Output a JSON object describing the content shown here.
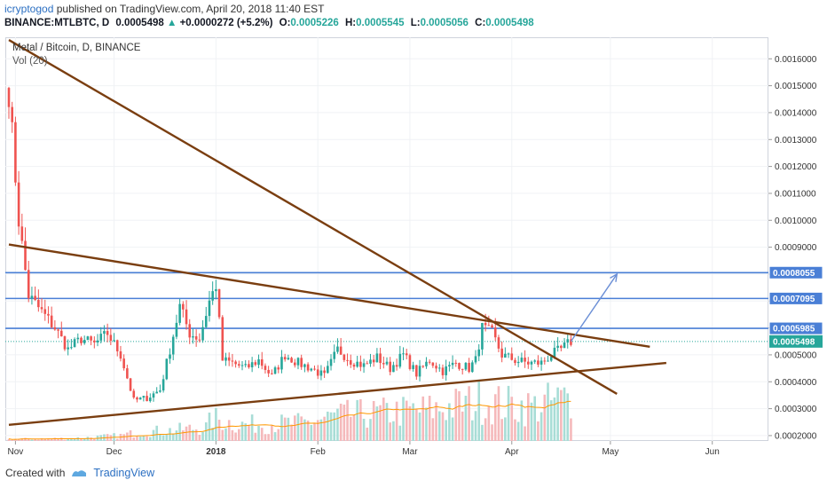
{
  "header": {
    "author": "icryptogod",
    "published": "published on TradingView.com, April 20, 2018 11:40 EST"
  },
  "ticker": {
    "symbol": "BINANCE:MTLBTC, D",
    "last": "0.0005498",
    "change": "+0.0000272 (+5.2%)",
    "open_label": "O:",
    "open": "0.0005226",
    "high_label": "H:",
    "high": "0.0005545",
    "low_label": "L:",
    "low": "0.0005056",
    "close_label": "C:",
    "close": "0.0005498",
    "up_arrow": "▲"
  },
  "legend": {
    "title": "Metal / Bitcoin, D, BINANCE",
    "volume": "Vol (20)"
  },
  "footer": {
    "created_with": "Created with",
    "brand": "TradingView"
  },
  "colors": {
    "up": "#26a69a",
    "down": "#ef5350",
    "trendline": "#7a3e10",
    "level": "#4a7fd6",
    "vol_up": "#a8ddd6",
    "vol_down": "#f5b9bb",
    "vol_ma": "#ff9800",
    "last_price": "#26a69a"
  },
  "chart_data": {
    "type": "candlestick",
    "ylim": [
      0.00018,
      0.00168
    ],
    "yticks": [
      "0.0002000",
      "0.0003000",
      "0.0004000",
      "0.0005000",
      "0.0006000",
      "0.0007000",
      "0.0008000",
      "0.0009000",
      "0.0010000",
      "0.0011000",
      "0.0012000",
      "0.0013000",
      "0.0014000",
      "0.0015000",
      "0.0016000"
    ],
    "xticks": [
      {
        "label": "Nov",
        "day": 2
      },
      {
        "label": "Dec",
        "day": 32
      },
      {
        "label": "2018",
        "day": 63
      },
      {
        "label": "Feb",
        "day": 94
      },
      {
        "label": "Mar",
        "day": 122
      },
      {
        "label": "Apr",
        "day": 153
      },
      {
        "label": "May",
        "day": 183
      },
      {
        "label": "Jun",
        "day": 214
      }
    ],
    "xlim_days": [
      0,
      230
    ],
    "anchors": [
      [
        0,
        0.00148
      ],
      [
        3,
        0.001
      ],
      [
        6,
        0.00072
      ],
      [
        10,
        0.00066
      ],
      [
        14,
        0.0006
      ],
      [
        18,
        0.00052
      ],
      [
        22,
        0.00056
      ],
      [
        26,
        0.00054
      ],
      [
        30,
        0.00058
      ],
      [
        34,
        0.0005
      ],
      [
        38,
        0.00033
      ],
      [
        42,
        0.00034
      ],
      [
        46,
        0.00037
      ],
      [
        49,
        0.00052
      ],
      [
        52,
        0.00068
      ],
      [
        55,
        0.00058
      ],
      [
        58,
        0.00056
      ],
      [
        61,
        0.0007
      ],
      [
        63,
        0.00076
      ],
      [
        65,
        0.00048
      ],
      [
        68,
        0.00047
      ],
      [
        72,
        0.00045
      ],
      [
        76,
        0.00048
      ],
      [
        80,
        0.00042
      ],
      [
        84,
        0.0005
      ],
      [
        88,
        0.00047
      ],
      [
        92,
        0.00045
      ],
      [
        96,
        0.00042
      ],
      [
        100,
        0.00052
      ],
      [
        104,
        0.00048
      ],
      [
        108,
        0.00046
      ],
      [
        112,
        0.00049
      ],
      [
        116,
        0.00045
      ],
      [
        120,
        0.0005
      ],
      [
        124,
        0.00043
      ],
      [
        128,
        0.00048
      ],
      [
        132,
        0.00044
      ],
      [
        136,
        0.00047
      ],
      [
        140,
        0.00045
      ],
      [
        142,
        0.00048
      ],
      [
        144,
        0.0006
      ],
      [
        147,
        0.00058
      ],
      [
        150,
        0.0005
      ],
      [
        154,
        0.00048
      ],
      [
        158,
        0.00047
      ],
      [
        162,
        0.00047
      ],
      [
        165,
        0.0005
      ],
      [
        168,
        0.00052
      ],
      [
        171,
        0.00055
      ]
    ],
    "volume_anchors": [
      [
        0,
        0.02
      ],
      [
        20,
        0.03
      ],
      [
        34,
        0.06
      ],
      [
        40,
        0.1
      ],
      [
        50,
        0.12
      ],
      [
        60,
        0.15
      ],
      [
        62,
        0.25
      ],
      [
        70,
        0.18
      ],
      [
        90,
        0.2
      ],
      [
        100,
        0.28
      ],
      [
        110,
        0.3
      ],
      [
        130,
        0.35
      ],
      [
        145,
        0.45
      ],
      [
        150,
        0.4
      ],
      [
        160,
        0.38
      ],
      [
        171,
        0.48
      ]
    ],
    "trendlines": [
      {
        "name": "downtrend-steep",
        "from": [
          0,
          0.00167
        ],
        "to": [
          185,
          0.000355
        ]
      },
      {
        "name": "downtrend-upper",
        "from": [
          0,
          0.00091
        ],
        "to": [
          195,
          0.00053
        ]
      },
      {
        "name": "uptrend-support",
        "from": [
          0,
          0.00024
        ],
        "to": [
          200,
          0.00047
        ]
      }
    ],
    "levels": [
      {
        "price": 0.0008055,
        "label": "0.0008055"
      },
      {
        "price": 0.0007095,
        "label": "0.0007095"
      },
      {
        "price": 0.0005985,
        "label": "0.0005985"
      }
    ],
    "last_price": {
      "price": 0.0005498,
      "label": "0.0005498"
    },
    "projection": {
      "from": [
        171,
        0.00055
      ],
      "to": [
        185,
        0.0008
      ]
    },
    "number_of_candles": 172
  }
}
